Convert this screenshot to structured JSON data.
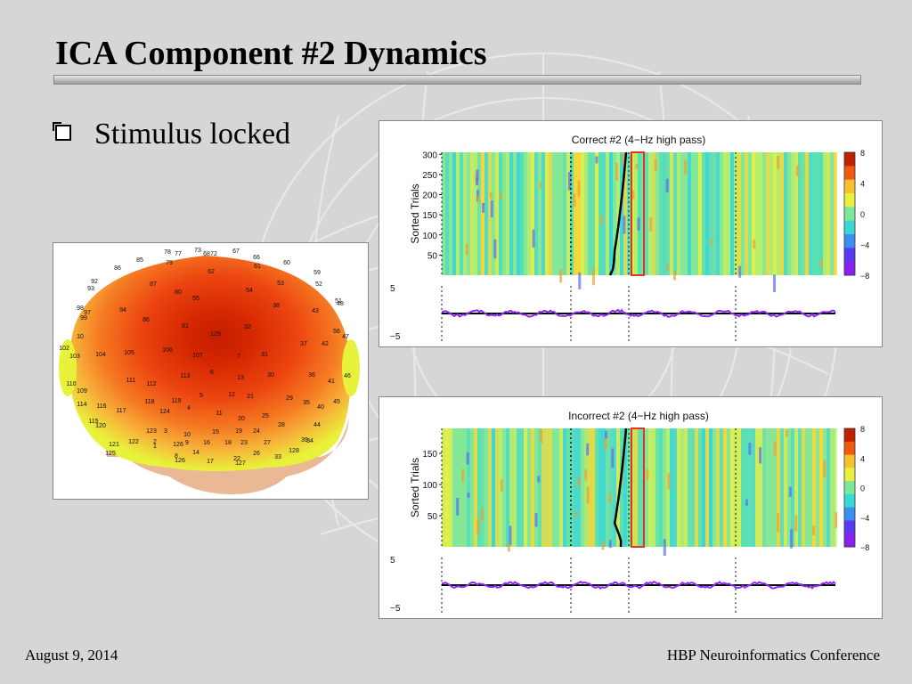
{
  "slide": {
    "title": "ICA Component #2 Dynamics",
    "bullet": "Stimulus locked",
    "footer_left": "August 9, 2014",
    "footer_right": "HBP Neuroinformatics Conference"
  },
  "topomap": {
    "electrodes": [
      "78",
      "77",
      "73",
      "68",
      "72",
      "67",
      "66",
      "85",
      "79",
      "62",
      "61",
      "60",
      "86",
      "59",
      "92",
      "87",
      "53",
      "93",
      "80",
      "55",
      "54",
      "52",
      "51",
      "98",
      "38",
      "43",
      "48",
      "97",
      "94",
      "99",
      "86",
      "56",
      "47",
      "81",
      "129",
      "32",
      "37",
      "42",
      "10",
      "106",
      "102",
      "104",
      "105",
      "107",
      "7",
      "31",
      "103",
      "113",
      "6",
      "13",
      "30",
      "36",
      "41",
      "46",
      "111",
      "112",
      "110",
      "109",
      "5",
      "12",
      "21",
      "29",
      "35",
      "40",
      "45",
      "118",
      "119",
      "114",
      "116",
      "4",
      "117",
      "124",
      "11",
      "20",
      "25",
      "28",
      "44",
      "115",
      "120",
      "123",
      "3",
      "10",
      "15",
      "19",
      "24",
      "39",
      "121",
      "126",
      "122",
      "2",
      "9",
      "16",
      "18",
      "23",
      "27",
      "34",
      "125",
      "1",
      "8",
      "126",
      "14",
      "17",
      "22",
      "127",
      "26",
      "33",
      "128"
    ],
    "colors": {
      "max": "#d42600",
      "mid": "#f25a18",
      "edge": "#f7b23a",
      "low": "#e8f23a",
      "skin": "#eab895"
    }
  },
  "erp_images": [
    {
      "title": "Correct #2 (4−Hz high pass)",
      "ylabel": "Sorted Trials",
      "yticks": [
        "300",
        "250",
        "200",
        "150",
        "100",
        "50"
      ],
      "colorbar_ticks": [
        "8",
        "4",
        "0",
        "−4",
        "−8"
      ],
      "erp_yticks": [
        "5",
        "−5"
      ]
    },
    {
      "title": "Incorrect #2 (4−Hz high pass)",
      "ylabel": "Sorted Trials",
      "yticks": [
        "150",
        "100",
        "50"
      ],
      "colorbar_ticks": [
        "8",
        "4",
        "0",
        "−4",
        "−8"
      ],
      "erp_yticks": [
        "5",
        "−5"
      ]
    }
  ]
}
